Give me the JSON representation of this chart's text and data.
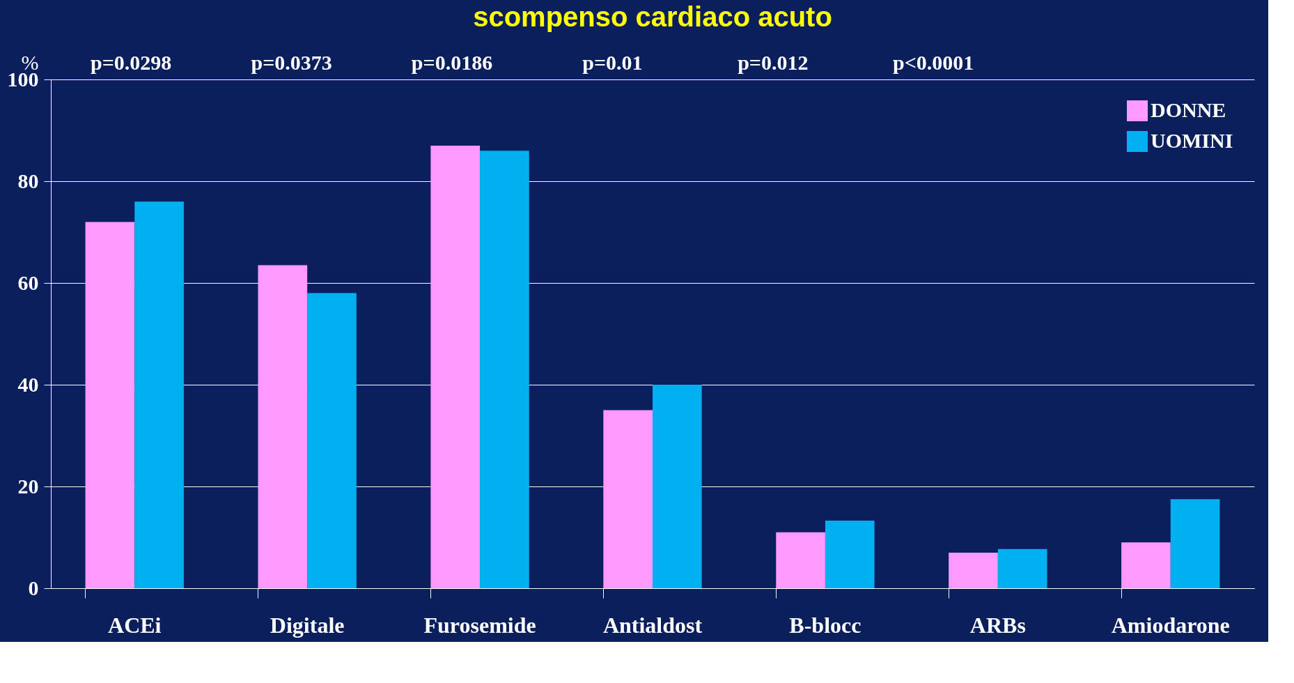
{
  "chart_data": {
    "type": "bar",
    "title": "scompenso cardiaco acuto",
    "ylabel": "%",
    "categories": [
      "ACEi",
      "Digitale",
      "Furosemide",
      "Antialdost",
      "B-blocc",
      "ARBs",
      "Amiodarone"
    ],
    "series": [
      {
        "name": "DONNE",
        "color": "#ff99ff",
        "values": [
          72,
          63.5,
          87,
          35,
          11,
          7,
          9
        ]
      },
      {
        "name": "UOMINI",
        "color": "#00b0f0",
        "values": [
          76,
          58,
          86,
          40,
          13.3,
          7.7,
          17.5
        ]
      }
    ],
    "ylim": [
      0,
      100
    ],
    "yticks": [
      0,
      20,
      40,
      60,
      80,
      100
    ],
    "grid": "y",
    "legend": "top right",
    "annotations": [
      "p=0.0298",
      "p=0.0373",
      "p=0.0186",
      "p=0.01",
      "p=0.012",
      "p<0.0001"
    ]
  }
}
